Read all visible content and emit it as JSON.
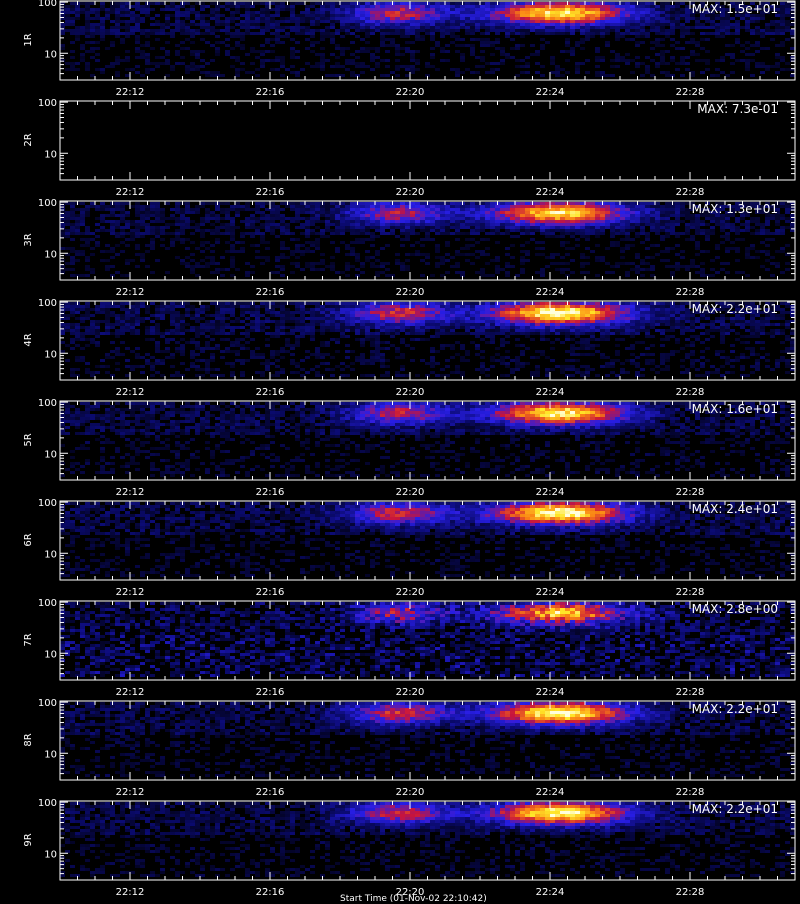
{
  "chart_data": {
    "type": "heatmap",
    "panel_count": 9,
    "x_ticks": [
      "22:12",
      "22:16",
      "22:20",
      "22:24",
      "22:28"
    ],
    "x_tick_minutes": [
      12,
      16,
      20,
      24,
      28
    ],
    "x_range_minutes": [
      10,
      31
    ],
    "y_scale": "log",
    "y_ticks": [
      10,
      100
    ],
    "y_range": [
      3,
      110
    ],
    "colormap": "black-blue-red-yellow-white",
    "panels": [
      {
        "detector": "1R",
        "max_label": "MAX: 1.5e+01",
        "max_value": 15,
        "intensity": 0.7,
        "noise": 0.06,
        "blank": false
      },
      {
        "detector": "2R",
        "max_label": "MAX: 7.3e-01",
        "max_value": 0.73,
        "intensity": 0.0,
        "noise": 0.0,
        "blank": true
      },
      {
        "detector": "3R",
        "max_label": "MAX: 1.3e+01",
        "max_value": 13,
        "intensity": 0.68,
        "noise": 0.05,
        "blank": false
      },
      {
        "detector": "4R",
        "max_label": "MAX: 2.2e+01",
        "max_value": 22,
        "intensity": 0.75,
        "noise": 0.07,
        "blank": false
      },
      {
        "detector": "5R",
        "max_label": "MAX: 1.6e+01",
        "max_value": 16,
        "intensity": 0.7,
        "noise": 0.06,
        "blank": false
      },
      {
        "detector": "6R",
        "max_label": "MAX: 2.4e+01",
        "max_value": 24,
        "intensity": 0.74,
        "noise": 0.06,
        "blank": false
      },
      {
        "detector": "7R",
        "max_label": "MAX: 2.8e+00",
        "max_value": 2.8,
        "intensity": 0.62,
        "noise": 0.18,
        "blank": false
      },
      {
        "detector": "8R",
        "max_label": "MAX: 2.2e+01",
        "max_value": 22,
        "intensity": 0.74,
        "noise": 0.06,
        "blank": false
      },
      {
        "detector": "9R",
        "max_label": "MAX: 2.2e+01",
        "max_value": 22,
        "intensity": 0.72,
        "noise": 0.06,
        "blank": false
      }
    ],
    "flare_events": [
      {
        "center_minute": 19.6,
        "width_minutes": 1.4,
        "y_center": 65,
        "strength": 0.55
      },
      {
        "center_minute": 24.2,
        "width_minutes": 1.9,
        "y_center": 65,
        "strength": 1.0
      }
    ]
  },
  "footer_text": "Start Time (01-Nov-02 22:10:42)",
  "colors": {
    "background": "#000000",
    "axis": "#ffffff",
    "cmap_low": "#000000",
    "cmap_mid1": "#1a10c8",
    "cmap_mid2": "#d01020",
    "cmap_high": "#ffe020"
  }
}
